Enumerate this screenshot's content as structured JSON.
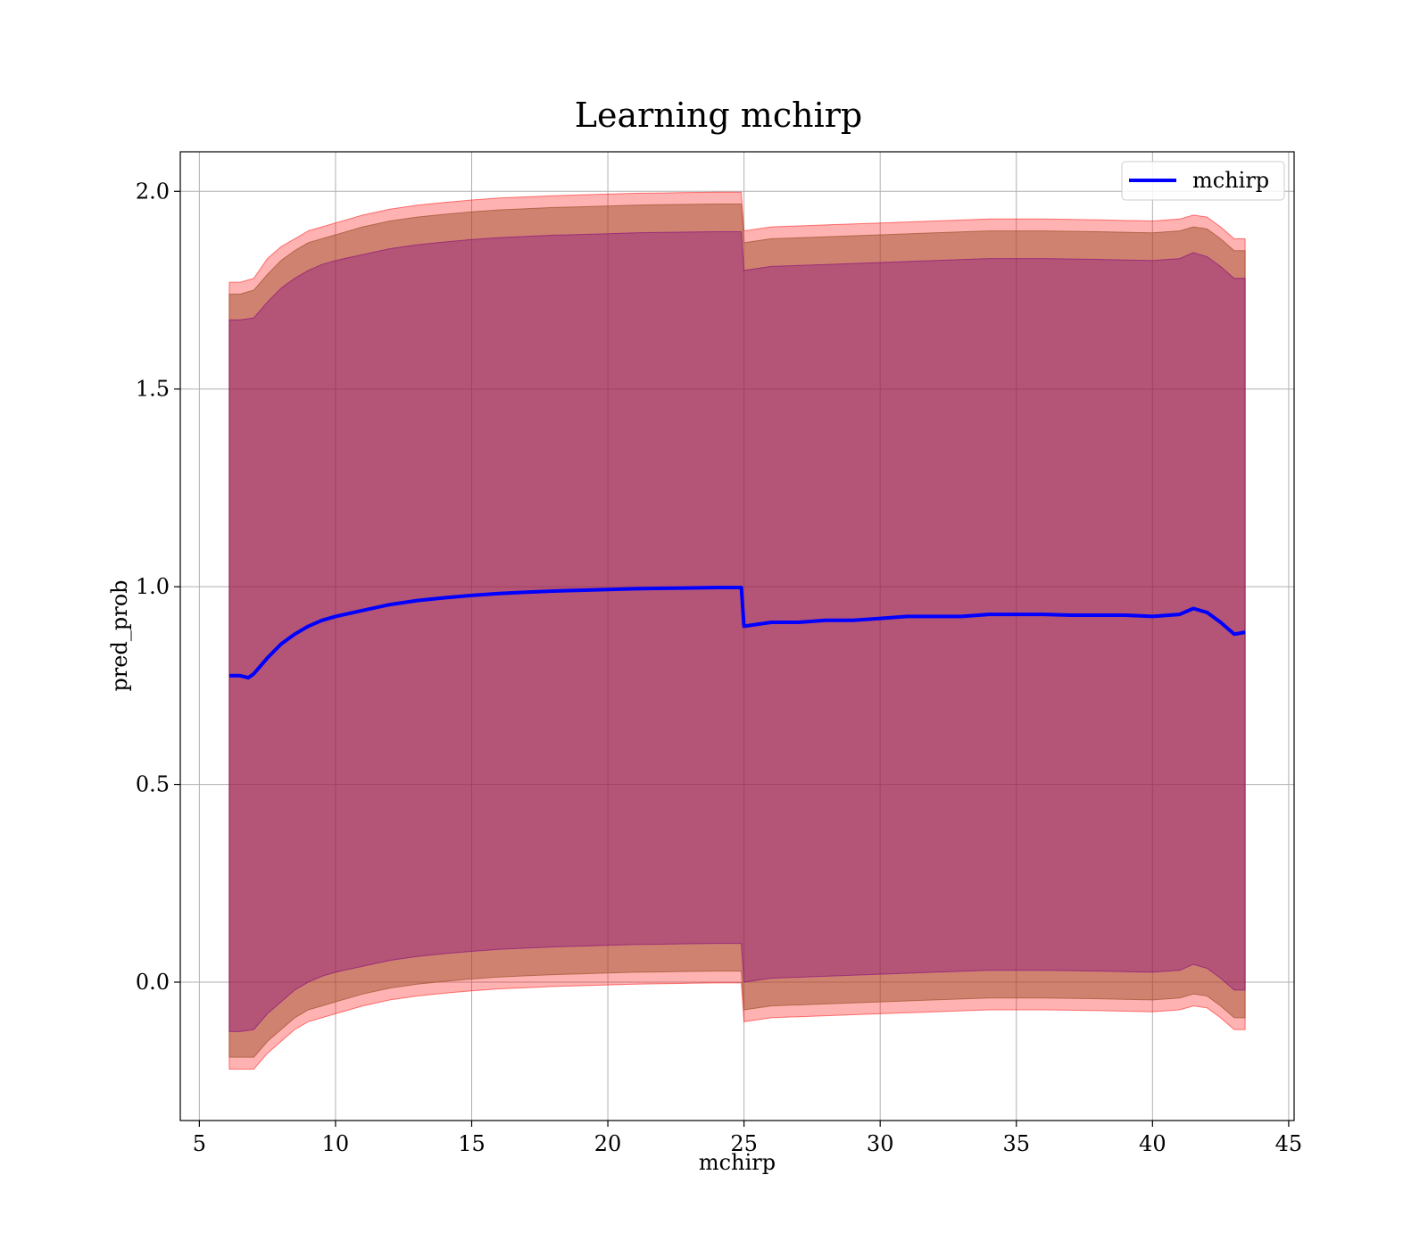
{
  "chart_data": {
    "type": "line",
    "title": "Learning mchirp",
    "xlabel": "mchirp",
    "ylabel": "pred_prob",
    "xlim": [
      4.3,
      45.2
    ],
    "ylim": [
      -0.35,
      2.1
    ],
    "x_ticks": [
      5,
      10,
      15,
      20,
      25,
      30,
      35,
      40,
      45
    ],
    "y_ticks": [
      0.0,
      0.5,
      1.0,
      1.5,
      2.0
    ],
    "x_tick_labels": [
      "5",
      "10",
      "15",
      "20",
      "25",
      "30",
      "35",
      "40",
      "45"
    ],
    "y_tick_labels": [
      "0.0",
      "0.5",
      "1.0",
      "1.5",
      "2.0"
    ],
    "grid": true,
    "legend": {
      "position": "top-right",
      "entries": [
        "mchirp"
      ]
    },
    "series": [
      {
        "name": "mchirp",
        "color": "#0000ff",
        "x": [
          6.1,
          6.5,
          6.8,
          7.0,
          7.5,
          8.0,
          8.5,
          9.0,
          9.5,
          10.0,
          11.0,
          12.0,
          13.0,
          14.0,
          15.0,
          16.0,
          17.0,
          18.0,
          19.0,
          20.0,
          21.0,
          22.0,
          23.0,
          24.0,
          24.9,
          25.0,
          26.0,
          27.0,
          28.0,
          29.0,
          30.0,
          31.0,
          32.0,
          33.0,
          34.0,
          35.0,
          36.0,
          37.0,
          38.0,
          39.0,
          40.0,
          41.0,
          41.5,
          42.0,
          42.5,
          43.0,
          43.4
        ],
        "values": [
          0.775,
          0.775,
          0.77,
          0.78,
          0.82,
          0.855,
          0.88,
          0.9,
          0.915,
          0.925,
          0.94,
          0.955,
          0.965,
          0.972,
          0.978,
          0.983,
          0.986,
          0.989,
          0.991,
          0.993,
          0.995,
          0.996,
          0.997,
          0.998,
          0.998,
          0.9,
          0.91,
          0.91,
          0.915,
          0.915,
          0.92,
          0.925,
          0.925,
          0.925,
          0.93,
          0.93,
          0.93,
          0.928,
          0.928,
          0.928,
          0.925,
          0.93,
          0.945,
          0.935,
          0.91,
          0.88,
          0.885
        ]
      }
    ],
    "bands": [
      {
        "color": "#ff0000",
        "opacity": 0.3,
        "x": [
          6.1,
          6.5,
          7.0,
          7.5,
          8.0,
          8.5,
          9.0,
          9.5,
          10.0,
          11.0,
          12.0,
          13.0,
          14.0,
          15.0,
          16.0,
          17.0,
          18.0,
          19.0,
          20.0,
          21.0,
          22.0,
          23.0,
          24.0,
          24.9,
          25.0,
          26.0,
          28.0,
          30.0,
          32.0,
          34.0,
          36.0,
          38.0,
          40.0,
          41.0,
          41.5,
          42.0,
          42.5,
          43.0,
          43.4
        ],
        "upper": [
          1.77,
          1.77,
          1.78,
          1.83,
          1.86,
          1.88,
          1.9,
          1.91,
          1.92,
          1.94,
          1.955,
          1.965,
          1.972,
          1.978,
          1.983,
          1.986,
          1.989,
          1.991,
          1.993,
          1.995,
          1.996,
          1.997,
          1.998,
          1.998,
          1.9,
          1.91,
          1.915,
          1.92,
          1.925,
          1.93,
          1.93,
          1.928,
          1.925,
          1.93,
          1.94,
          1.935,
          1.91,
          1.88,
          1.88
        ],
        "lower": [
          -0.22,
          -0.22,
          -0.22,
          -0.18,
          -0.15,
          -0.12,
          -0.1,
          -0.09,
          -0.08,
          -0.06,
          -0.045,
          -0.035,
          -0.028,
          -0.022,
          -0.017,
          -0.014,
          -0.011,
          -0.009,
          -0.007,
          -0.005,
          -0.004,
          -0.003,
          -0.002,
          -0.002,
          -0.1,
          -0.09,
          -0.085,
          -0.08,
          -0.075,
          -0.07,
          -0.07,
          -0.072,
          -0.075,
          -0.07,
          -0.06,
          -0.065,
          -0.09,
          -0.12,
          -0.12
        ]
      },
      {
        "color": "#a0522d",
        "opacity": 0.5,
        "x": [
          6.1,
          6.5,
          7.0,
          7.5,
          8.0,
          8.5,
          9.0,
          9.5,
          10.0,
          11.0,
          12.0,
          13.0,
          14.0,
          15.0,
          16.0,
          17.0,
          18.0,
          19.0,
          20.0,
          21.0,
          22.0,
          23.0,
          24.0,
          24.9,
          25.0,
          26.0,
          28.0,
          30.0,
          32.0,
          34.0,
          36.0,
          38.0,
          40.0,
          41.0,
          41.5,
          42.0,
          42.5,
          43.0,
          43.4
        ],
        "upper": [
          1.74,
          1.74,
          1.75,
          1.79,
          1.825,
          1.85,
          1.87,
          1.88,
          1.89,
          1.91,
          1.925,
          1.935,
          1.942,
          1.948,
          1.953,
          1.956,
          1.959,
          1.961,
          1.963,
          1.965,
          1.966,
          1.967,
          1.968,
          1.968,
          1.87,
          1.88,
          1.885,
          1.89,
          1.895,
          1.9,
          1.9,
          1.898,
          1.895,
          1.9,
          1.91,
          1.905,
          1.88,
          1.85,
          1.85
        ],
        "lower": [
          -0.19,
          -0.19,
          -0.19,
          -0.15,
          -0.12,
          -0.09,
          -0.07,
          -0.06,
          -0.05,
          -0.03,
          -0.015,
          -0.005,
          0.002,
          0.008,
          0.013,
          0.016,
          0.019,
          0.021,
          0.023,
          0.025,
          0.026,
          0.027,
          0.028,
          0.028,
          -0.07,
          -0.06,
          -0.055,
          -0.05,
          -0.045,
          -0.04,
          -0.04,
          -0.042,
          -0.045,
          -0.04,
          -0.03,
          -0.035,
          -0.06,
          -0.09,
          -0.09
        ]
      },
      {
        "color": "#800080",
        "opacity": 0.35,
        "x": [
          6.1,
          6.5,
          7.0,
          7.5,
          8.0,
          8.5,
          9.0,
          9.5,
          10.0,
          11.0,
          12.0,
          13.0,
          14.0,
          15.0,
          16.0,
          17.0,
          18.0,
          19.0,
          20.0,
          21.0,
          22.0,
          23.0,
          24.0,
          24.9,
          25.0,
          26.0,
          28.0,
          30.0,
          32.0,
          34.0,
          36.0,
          38.0,
          40.0,
          41.0,
          41.5,
          42.0,
          42.5,
          43.0,
          43.4
        ],
        "upper": [
          1.675,
          1.675,
          1.68,
          1.72,
          1.755,
          1.78,
          1.8,
          1.815,
          1.825,
          1.84,
          1.855,
          1.865,
          1.872,
          1.878,
          1.883,
          1.886,
          1.889,
          1.891,
          1.893,
          1.895,
          1.896,
          1.897,
          1.898,
          1.898,
          1.8,
          1.81,
          1.815,
          1.82,
          1.825,
          1.83,
          1.83,
          1.828,
          1.825,
          1.83,
          1.845,
          1.835,
          1.81,
          1.78,
          1.78
        ],
        "lower": [
          -0.125,
          -0.125,
          -0.12,
          -0.08,
          -0.05,
          -0.02,
          0.0,
          0.015,
          0.025,
          0.04,
          0.055,
          0.065,
          0.072,
          0.078,
          0.083,
          0.086,
          0.089,
          0.091,
          0.093,
          0.095,
          0.096,
          0.097,
          0.098,
          0.098,
          0.0,
          0.01,
          0.015,
          0.02,
          0.025,
          0.03,
          0.03,
          0.028,
          0.025,
          0.03,
          0.045,
          0.035,
          0.01,
          -0.02,
          -0.02
        ]
      }
    ]
  }
}
